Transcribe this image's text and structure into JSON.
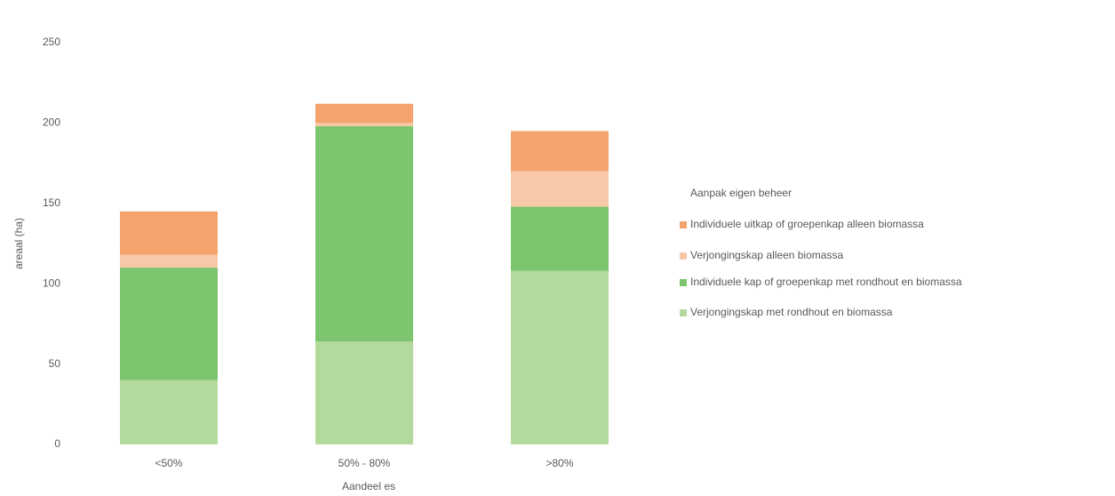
{
  "chart_data": {
    "type": "stacked_bar",
    "categories": [
      "<50%",
      "50% - 80%",
      ">80%"
    ],
    "xlabel": "Aandeel es",
    "ylabel": "areaal (ha)",
    "legend_title": "Aanpak eigen beheer",
    "legend": "right",
    "ylim": [
      0,
      250
    ],
    "yticks": [
      0,
      50,
      100,
      150,
      200,
      250
    ],
    "grid": false,
    "series": [
      {
        "name": "Individuele uitkap of groepenkap alleen biomassa",
        "color": "#f4a36c",
        "values": [
          27,
          12,
          25
        ]
      },
      {
        "name": "Verjongingskap alleen biomassa",
        "color": "#f8c9a8",
        "values": [
          8,
          2,
          22
        ]
      },
      {
        "name": "Individuele kap of groepenkap met rondhout en biomassa",
        "color": "#7dc46e",
        "values": [
          70,
          134,
          40
        ]
      },
      {
        "name": "Verjongingskap met rondhout en biomassa",
        "color": "#b3d99c",
        "values": [
          40,
          64,
          108
        ]
      }
    ]
  }
}
